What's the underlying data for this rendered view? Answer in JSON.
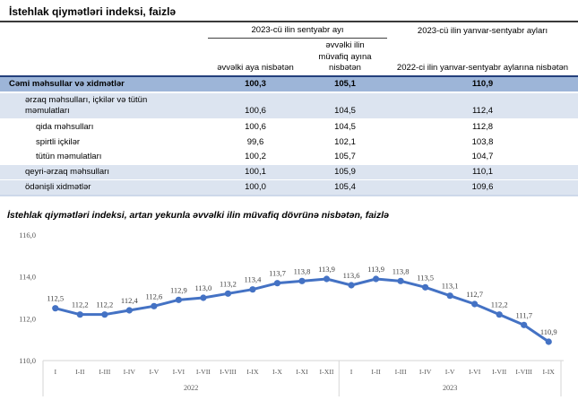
{
  "page": {
    "title": "İstehlak qiymətləri indeksi, faizlə"
  },
  "table": {
    "col_group_1": "2023-cü ilin sentyabr ayı",
    "col_group_2": "2023-cü ilin yanvar-sentyabr ayları",
    "subheaders": [
      "əvvəlki aya nisbətən",
      "əvvəlki ilin müvafiq ayına nisbətən",
      "2022-ci ilin yanvar-sentyabr aylarına nisbətən"
    ],
    "rows": [
      {
        "label": "Cəmi məhsullar və xidmətlər",
        "values": [
          "100,3",
          "105,1",
          "110,9"
        ],
        "style": "total",
        "indent": 0
      },
      {
        "label": "ərzaq məhsulları, içkilər və tütün məmulatları",
        "values": [
          "100,6",
          "104,5",
          "112,4"
        ],
        "style": "shaded",
        "indent": 1
      },
      {
        "label": "qida məhsulları",
        "values": [
          "100,6",
          "104,5",
          "112,8"
        ],
        "style": "plain",
        "indent": 2
      },
      {
        "label": "spirtli içkilər",
        "values": [
          "99,6",
          "102,1",
          "103,8"
        ],
        "style": "plain",
        "indent": 2
      },
      {
        "label": "tütün məmulatları",
        "values": [
          "100,2",
          "105,7",
          "104,7"
        ],
        "style": "plain",
        "indent": 2
      },
      {
        "label": "qeyri-ərzaq məhsulları",
        "values": [
          "100,1",
          "105,9",
          "110,1"
        ],
        "style": "shaded",
        "indent": 1
      },
      {
        "label": "ödənişli xidmətlər",
        "values": [
          "100,0",
          "105,4",
          "109,6"
        ],
        "style": "shaded",
        "indent": 1
      }
    ]
  },
  "chart_data": {
    "type": "line",
    "title": "İstehlak qiymətləri indeksi, artan yekunla əvvəlki ilin müvafiq dövrünə nisbətən, faizlə",
    "categories": [
      "I",
      "I-II",
      "I-III",
      "I-IV",
      "I-V",
      "I-VI",
      "I-VII",
      "I-VIII",
      "I-IX",
      "I-X",
      "I-XI",
      "I-XII",
      "I",
      "I-II",
      "I-III",
      "I-IV",
      "I-V",
      "I-VI",
      "I-VII",
      "I-VIII",
      "I-IX"
    ],
    "year_groups": [
      {
        "label": "2022",
        "count": 12
      },
      {
        "label": "2023",
        "count": 9
      }
    ],
    "values": [
      112.5,
      112.2,
      112.2,
      112.4,
      112.6,
      112.9,
      113.0,
      113.2,
      113.4,
      113.7,
      113.8,
      113.9,
      113.6,
      113.9,
      113.8,
      113.5,
      113.1,
      112.7,
      112.2,
      111.7,
      110.9
    ],
    "labels": [
      "112,5",
      "112,2",
      "112,2",
      "112,4",
      "112,6",
      "112,9",
      "113,0",
      "113,2",
      "113,4",
      "113,7",
      "113,8",
      "113,9",
      "113,6",
      "113,9",
      "113,8",
      "113,5",
      "113,1",
      "112,7",
      "112,2",
      "111,7",
      "110,9"
    ],
    "yticks": [
      "116,0",
      "114,0",
      "112,0",
      "110,0"
    ],
    "ylim": [
      110,
      116
    ],
    "grid": false,
    "legend": "none",
    "xlabel": "",
    "ylabel": "",
    "line_color": "#4472C4",
    "data_label_color": "#3f3f3f",
    "axis_text_color": "#595959",
    "axis_line_color": "#d6d6d6"
  }
}
